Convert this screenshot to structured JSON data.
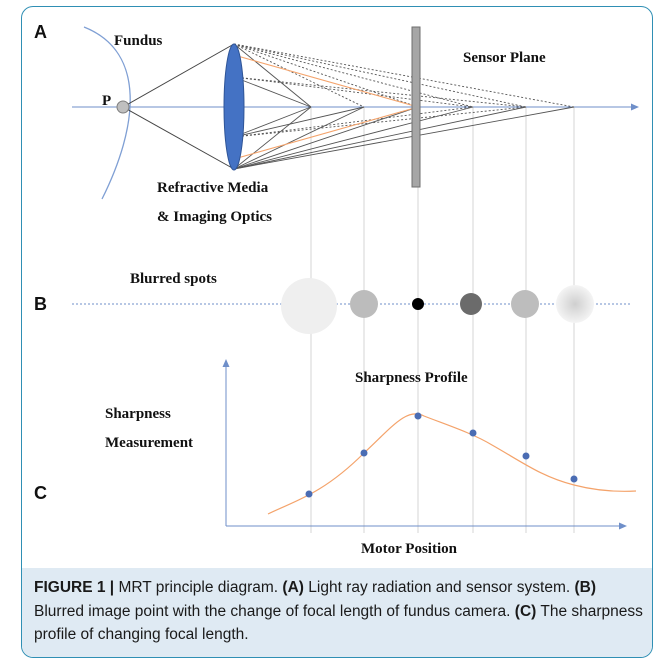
{
  "labels": {
    "panel_a": "A",
    "panel_b": "B",
    "panel_c": "C",
    "fundus": "Fundus",
    "point_p": "P",
    "sensor_plane": "Sensor Plane",
    "refractive_media": "Refractive Media",
    "imaging_optics": "& Imaging Optics",
    "blurred_spots": "Blurred spots",
    "sharpness_profile": "Sharpness Profile",
    "y_axis_line1": "Sharpness",
    "y_axis_line2": "Measurement",
    "x_axis": "Motor Position"
  },
  "caption": {
    "figure_label": "FIGURE 1 |",
    "intro": " MRT principle diagram. ",
    "a_tag": "(A)",
    "a_text": " Light ray radiation and sensor system. ",
    "b_tag": "(B)",
    "b_text": " Blurred image point with the change of focal length of fundus camera. ",
    "c_tag": "(C)",
    "c_text": " The sharpness profile of changing focal length."
  },
  "colors": {
    "frame": "#2f8fb4",
    "caption_bg": "#dfeaf3",
    "lens": "#4472c4",
    "axis": "#6f8fc9",
    "curve": "#f4a36b",
    "dot": "#4a6cb3",
    "sensor": "#a6a6a6"
  },
  "spots": [
    {
      "shade": "#efefef"
    },
    {
      "shade": "#bcbcbc"
    },
    {
      "shade": "#000000"
    },
    {
      "shade": "#6b6b6b"
    },
    {
      "shade": "#bdbdbd"
    },
    {
      "shade": "#dcdcdc"
    }
  ]
}
